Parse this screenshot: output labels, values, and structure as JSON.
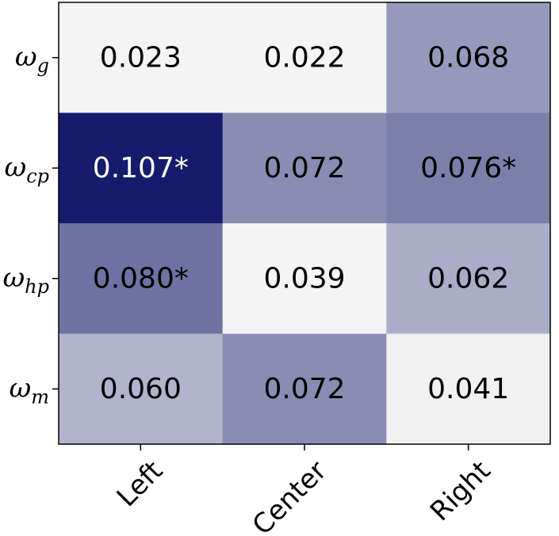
{
  "chart_data": {
    "type": "heatmap",
    "title": "",
    "xlabel": "",
    "ylabel": "",
    "columns": [
      "Left",
      "Center",
      "Right"
    ],
    "rows": [
      {
        "symbol": "ω",
        "subscript": "g"
      },
      {
        "symbol": "ω",
        "subscript": "cp"
      },
      {
        "symbol": "ω",
        "subscript": "hp"
      },
      {
        "symbol": "ω",
        "subscript": "m"
      }
    ],
    "values": [
      [
        0.023,
        0.022,
        0.068
      ],
      [
        0.107,
        0.072,
        0.076
      ],
      [
        0.08,
        0.039,
        0.062
      ],
      [
        0.06,
        0.072,
        0.041
      ]
    ],
    "labels": [
      [
        "0.023",
        "0.022",
        "0.068"
      ],
      [
        "0.107*",
        "0.072",
        "0.076*"
      ],
      [
        "0.080*",
        "0.039",
        "0.062"
      ],
      [
        "0.060",
        "0.072",
        "0.041"
      ]
    ],
    "colormap": {
      "low": "#f4f4f4",
      "high": "#161b6d",
      "min": 0.04,
      "max": 0.107
    },
    "text_colors": {
      "dark": "#000000",
      "light": "#ffffff"
    }
  }
}
